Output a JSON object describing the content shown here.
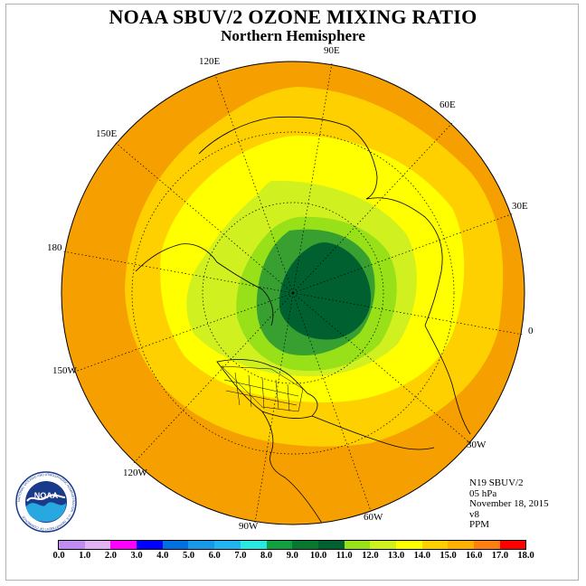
{
  "header": {
    "title": "NOAA SBUV/2 OZONE MIXING RATIO",
    "subtitle": "Northern Hemisphere"
  },
  "longitude_labels": {
    "l90e": "90E",
    "l60e": "60E",
    "l30e": "30E",
    "l0": "0",
    "l30w": "30W",
    "l60w": "60W",
    "l90w": "90W",
    "l120w": "120W",
    "l150w": "150W",
    "l180": "180",
    "l150e": "150E",
    "l120e": "120E"
  },
  "info": {
    "satellite": "N19 SBUV/2",
    "level": "05 hPa",
    "date": "November 18, 2015",
    "version": "v8",
    "units": "PPM"
  },
  "logo": {
    "text": "NOAA",
    "ring_text": "NATIONAL OCEANIC AND ATMOSPHERIC ADMINISTRATION · U.S. DEPARTMENT OF COMMERCE"
  },
  "colorbar": {
    "labels": [
      "0.0",
      "1.0",
      "2.0",
      "3.0",
      "4.0",
      "5.0",
      "6.0",
      "7.0",
      "8.0",
      "9.0",
      "10.0",
      "11.0",
      "12.0",
      "13.0",
      "14.0",
      "15.0",
      "16.0",
      "17.0",
      "18.0"
    ],
    "colors": [
      "#c08cf0",
      "#e0b4f4",
      "#ff00ff",
      "#0000ff",
      "#0070e0",
      "#1898e8",
      "#20b4f0",
      "#28e8e0",
      "#10a040",
      "#087830",
      "#006030",
      "#98e018",
      "#d0f020",
      "#ffff00",
      "#ffd000",
      "#ffb000",
      "#ff8010",
      "#ff0000",
      "#e00000",
      "#906040"
    ]
  },
  "map_colors": {
    "outer": "#f5a000",
    "ring_13_14": "#ffd000",
    "ring_12_13": "#ffff00",
    "ring_11_12": "#d0f020",
    "ring_10_11": "#98e018",
    "ring_9_10": "#38a030",
    "core": "#006030"
  }
}
